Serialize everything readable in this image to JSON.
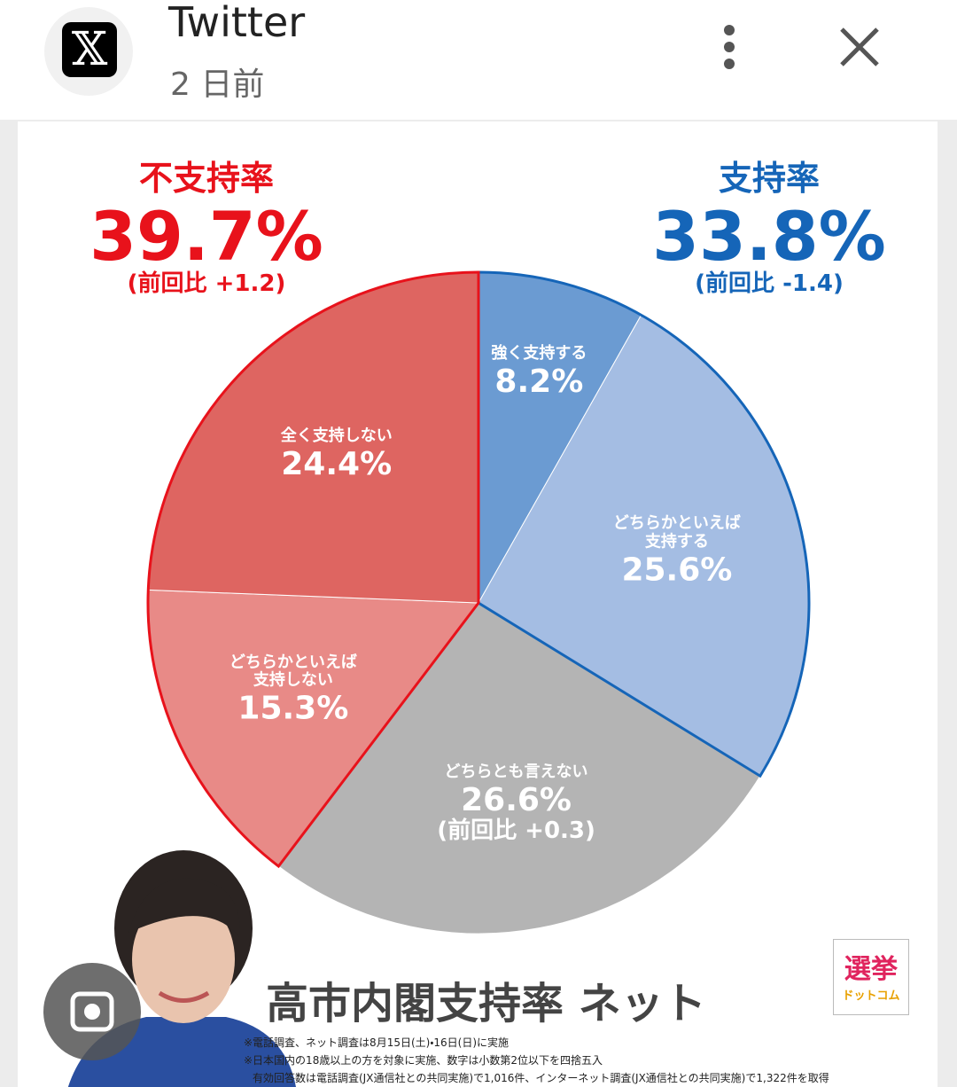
{
  "header": {
    "app_name": "Twitter",
    "time": "2 日前"
  },
  "chart_data": {
    "type": "pie",
    "title": "高市内閣支持率 ネット",
    "categories": [
      "強く支持する",
      "どちらかといえば\n支持する",
      "どちらとも言えない",
      "どちらかといえば\n支持しない",
      "全く支持しない"
    ],
    "values": [
      8.2,
      25.6,
      26.6,
      15.3,
      24.4
    ],
    "value_labels": [
      "8.2%",
      "25.6%",
      "26.6%",
      "15.3%",
      "24.4%"
    ],
    "colors": [
      "#6b9bd2",
      "#a4bde3",
      "#b4b4b4",
      "#e88a87",
      "#de6561"
    ],
    "neutral_change": "(前回比 +0.3)",
    "groups": [
      {
        "name": "支持率",
        "value_label": "33.8%",
        "change": "(前回比 -1.4)",
        "color": "#1565b8"
      },
      {
        "name": "不支持率",
        "value_label": "39.7%",
        "change": "(前回比 +1.2)",
        "color": "#e8121b"
      }
    ]
  },
  "logo": {
    "top": "選挙",
    "bottom": "ドットコム"
  },
  "footnotes": [
    "※電話調査、ネット調査は8月15日(土)・16日(日)に実施",
    "※日本国内の18歳以上の方を対象に実施、数字は小数第2位以下を四捨五入",
    "有効回答数は電話調査(JX通信社との共同実施)で1,016件、インターネット調査(JX通信社との共同実施)で1,322件を取得"
  ]
}
